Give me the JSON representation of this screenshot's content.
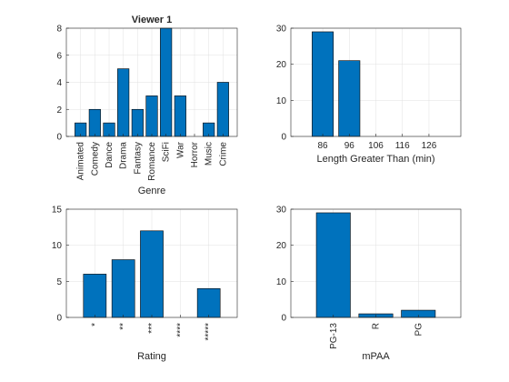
{
  "figure": {
    "background": "#ffffff"
  },
  "style": {
    "bar_color": "#0072bd",
    "bar_edge": "#000000",
    "grid_color": "#e0e0e0",
    "axis_color": "#262626"
  },
  "chart_data": [
    {
      "type": "bar",
      "title": "Viewer 1",
      "xlabel": "Genre",
      "ylabel": "",
      "categories": [
        "Animated",
        "Comedy",
        "Dance",
        "Drama",
        "Fantasy",
        "Romance",
        "SciFi",
        "War",
        "Horror",
        "Music",
        "Crime"
      ],
      "values": [
        1,
        2,
        1,
        5,
        2,
        3,
        8,
        3,
        0,
        1,
        4
      ],
      "ylim": [
        0,
        8
      ],
      "yticks": [
        0,
        2,
        4,
        6,
        8
      ],
      "xlim": [
        0,
        12
      ],
      "rotate_xticks": true,
      "grid": true
    },
    {
      "type": "bar",
      "title": "",
      "xlabel": "Length Greater Than (min)",
      "ylabel": "",
      "x": [
        86,
        96,
        106,
        116,
        126
      ],
      "values": [
        29,
        21,
        0,
        0,
        0
      ],
      "ylim": [
        0,
        30
      ],
      "yticks": [
        0,
        10,
        20,
        30
      ],
      "xlim": [
        74,
        138
      ],
      "bar_width": 8,
      "rotate_xticks": false,
      "grid": true
    },
    {
      "type": "bar",
      "title": "",
      "xlabel": "Rating",
      "ylabel": "",
      "categories": [
        "*",
        "**",
        "***",
        "****",
        "*****"
      ],
      "values": [
        6,
        8,
        12,
        0,
        4
      ],
      "ylim": [
        0,
        15
      ],
      "yticks": [
        0,
        5,
        10,
        15
      ],
      "xlim": [
        0,
        6
      ],
      "rotate_xticks": true,
      "grid": true
    },
    {
      "type": "bar",
      "title": "",
      "xlabel": "mPAA",
      "ylabel": "",
      "categories": [
        "PG-13",
        "R",
        "PG"
      ],
      "values": [
        29,
        1,
        2
      ],
      "ylim": [
        0,
        30
      ],
      "yticks": [
        0,
        10,
        20,
        30
      ],
      "xlim": [
        0,
        4
      ],
      "rotate_xticks": true,
      "grid": true
    }
  ]
}
